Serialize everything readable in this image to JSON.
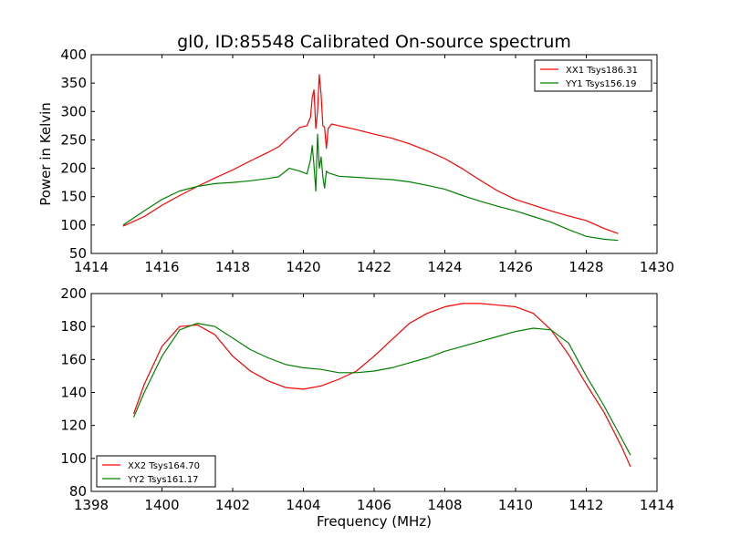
{
  "figure": {
    "title": "gl0, ID:85548 Calibrated On-source spectrum",
    "xlabel": "Frequency (MHz)"
  },
  "chart_data": [
    {
      "type": "line",
      "title": "gl0, ID:85548 Calibrated On-source spectrum",
      "xlabel": "",
      "ylabel": "Power in Kelvin",
      "xlim": [
        1414,
        1430
      ],
      "ylim": [
        50,
        400
      ],
      "xticks": [
        1414,
        1416,
        1418,
        1420,
        1422,
        1424,
        1426,
        1428,
        1430
      ],
      "yticks": [
        50,
        100,
        150,
        200,
        250,
        300,
        350,
        400
      ],
      "legend": "top-right",
      "grid": false,
      "series": [
        {
          "name": "XX1 Tsys186.31",
          "color": "#ff0000",
          "x": [
            1414.9,
            1415.5,
            1416.0,
            1416.5,
            1417.0,
            1417.5,
            1418.0,
            1418.5,
            1419.0,
            1419.3,
            1419.6,
            1419.9,
            1420.1,
            1420.2,
            1420.25,
            1420.3,
            1420.35,
            1420.4,
            1420.45,
            1420.5,
            1420.55,
            1420.6,
            1420.65,
            1420.7,
            1420.8,
            1421.0,
            1421.5,
            1422.0,
            1422.5,
            1423.0,
            1423.5,
            1424.0,
            1424.5,
            1425.0,
            1425.5,
            1426.0,
            1426.5,
            1427.0,
            1427.5,
            1428.0,
            1428.5,
            1428.9
          ],
          "y": [
            98,
            115,
            135,
            152,
            168,
            183,
            197,
            213,
            228,
            238,
            255,
            272,
            275,
            290,
            325,
            338,
            270,
            300,
            365,
            330,
            275,
            272,
            235,
            270,
            278,
            275,
            268,
            260,
            253,
            243,
            231,
            217,
            199,
            179,
            160,
            145,
            135,
            125,
            116,
            108,
            94,
            85
          ]
        },
        {
          "name": "YY1 Tsys156.19",
          "color": "#008000",
          "x": [
            1414.9,
            1415.5,
            1416.0,
            1416.5,
            1417.0,
            1417.5,
            1418.0,
            1418.5,
            1419.0,
            1419.3,
            1419.6,
            1419.9,
            1420.1,
            1420.2,
            1420.25,
            1420.3,
            1420.35,
            1420.4,
            1420.45,
            1420.5,
            1420.55,
            1420.6,
            1420.65,
            1420.7,
            1420.8,
            1421.0,
            1421.5,
            1422.0,
            1422.5,
            1423.0,
            1423.5,
            1424.0,
            1424.5,
            1425.0,
            1425.5,
            1426.0,
            1426.5,
            1427.0,
            1427.5,
            1428.0,
            1428.5,
            1428.9
          ],
          "y": [
            100,
            125,
            145,
            160,
            168,
            173,
            175,
            178,
            182,
            185,
            200,
            195,
            190,
            215,
            240,
            205,
            160,
            260,
            200,
            220,
            185,
            165,
            195,
            192,
            190,
            186,
            184,
            182,
            180,
            176,
            170,
            163,
            152,
            142,
            133,
            125,
            115,
            105,
            92,
            80,
            75,
            73
          ]
        }
      ]
    },
    {
      "type": "line",
      "title": "",
      "xlabel": "Frequency (MHz)",
      "ylabel": "",
      "xlim": [
        1398,
        1414
      ],
      "ylim": [
        80,
        200
      ],
      "xticks": [
        1398,
        1400,
        1402,
        1404,
        1406,
        1408,
        1410,
        1412,
        1414
      ],
      "yticks": [
        80,
        100,
        120,
        140,
        160,
        180,
        200
      ],
      "legend": "bottom-left",
      "grid": false,
      "series": [
        {
          "name": "XX2 Tsys164.70",
          "color": "#ff0000",
          "x": [
            1399.2,
            1399.5,
            1400.0,
            1400.5,
            1401.0,
            1401.5,
            1402.0,
            1402.5,
            1403.0,
            1403.5,
            1404.0,
            1404.5,
            1405.0,
            1405.5,
            1406.0,
            1406.5,
            1407.0,
            1407.5,
            1408.0,
            1408.5,
            1409.0,
            1409.5,
            1410.0,
            1410.5,
            1411.0,
            1411.5,
            1412.0,
            1412.5,
            1413.0,
            1413.25
          ],
          "y": [
            127,
            145,
            168,
            180,
            181,
            175,
            162,
            153,
            147,
            143,
            142,
            144,
            148,
            153,
            162,
            172,
            182,
            188,
            192,
            194,
            194,
            193,
            192,
            188,
            178,
            163,
            145,
            128,
            107,
            95
          ]
        },
        {
          "name": "YY2 Tsys161.17",
          "color": "#008000",
          "x": [
            1399.2,
            1399.5,
            1400.0,
            1400.5,
            1401.0,
            1401.5,
            1402.0,
            1402.5,
            1403.0,
            1403.5,
            1404.0,
            1404.5,
            1405.0,
            1405.5,
            1406.0,
            1406.5,
            1407.0,
            1407.5,
            1408.0,
            1408.5,
            1409.0,
            1409.5,
            1410.0,
            1410.5,
            1411.0,
            1411.5,
            1412.0,
            1412.5,
            1413.0,
            1413.25
          ],
          "y": [
            125,
            140,
            162,
            178,
            182,
            180,
            173,
            166,
            161,
            157,
            155,
            154,
            152,
            152,
            153,
            155,
            158,
            161,
            165,
            168,
            171,
            174,
            177,
            179,
            178,
            170,
            150,
            132,
            112,
            102
          ]
        }
      ]
    }
  ]
}
